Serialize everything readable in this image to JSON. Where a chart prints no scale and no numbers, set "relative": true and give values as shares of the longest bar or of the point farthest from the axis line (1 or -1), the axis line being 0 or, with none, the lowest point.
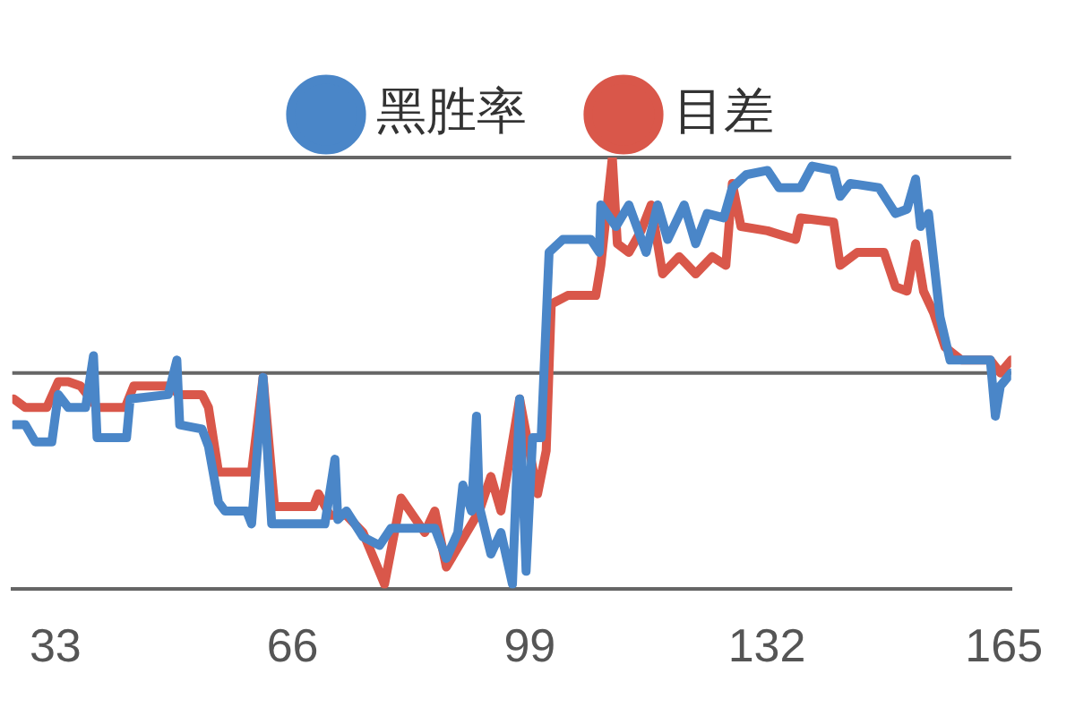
{
  "chart_data": {
    "type": "line",
    "relative": true,
    "legend": "top",
    "line_style": "solid",
    "ref_lines": [
      {
        "axis": "y",
        "value": 0.5,
        "color": "#666666"
      },
      {
        "axis": "y",
        "value": 1,
        "color": "#666666"
      }
    ],
    "xlim": [
      27,
      166
    ],
    "xticks": [
      33,
      66,
      99,
      132,
      165
    ],
    "series": [
      {
        "name": "黑胜率",
        "color": "#4a86c8",
        "x": [
          27.2,
          28.8,
          30.2,
          32.5,
          33.4,
          34.8,
          37.2,
          38.3,
          38.8,
          42.9,
          43.4,
          48.7,
          49.9,
          50.3,
          53.4,
          54.3,
          55.7,
          56.6,
          59.6,
          60.3,
          61.9,
          63.1,
          70.5,
          71.9,
          72.3,
          73.5,
          75.8,
          78.1,
          79.7,
          81.1,
          85.8,
          87.4,
          89.0,
          89.7,
          90.9,
          91.6,
          92.0,
          93.6,
          95.0,
          96.6,
          97.6,
          98.5,
          99.4,
          100.6,
          101.7,
          103.6,
          107.5,
          108.7,
          108.9,
          111.0,
          112.8,
          115.2,
          116.8,
          118.2,
          120.5,
          122.1,
          123.7,
          126.0,
          127.2,
          129.1,
          132.1,
          133.7,
          136.7,
          138.3,
          141.3,
          142.2,
          143.6,
          147.6,
          149.9,
          151.5,
          152.7,
          153.4,
          154.5,
          156.1,
          157.5,
          159.8,
          163.1,
          163.8,
          164.5,
          166.0
        ],
        "values": [
          0.38,
          0.38,
          0.34,
          0.34,
          0.45,
          0.42,
          0.42,
          0.54,
          0.35,
          0.35,
          0.44,
          0.45,
          0.53,
          0.38,
          0.37,
          0.33,
          0.2,
          0.18,
          0.18,
          0.15,
          0.49,
          0.15,
          0.15,
          0.3,
          0.16,
          0.18,
          0.12,
          0.1,
          0.14,
          0.14,
          0.14,
          0.07,
          0.13,
          0.24,
          0.18,
          0.4,
          0.19,
          0.08,
          0.13,
          0.01,
          0.44,
          0.04,
          0.35,
          0.35,
          0.78,
          0.81,
          0.81,
          0.78,
          0.89,
          0.84,
          0.89,
          0.78,
          0.89,
          0.81,
          0.89,
          0.8,
          0.87,
          0.86,
          0.93,
          0.96,
          0.97,
          0.93,
          0.93,
          0.98,
          0.97,
          0.91,
          0.94,
          0.93,
          0.87,
          0.88,
          0.95,
          0.84,
          0.87,
          0.63,
          0.53,
          0.53,
          0.53,
          0.4,
          0.47,
          0.5
        ]
      },
      {
        "name": "目差",
        "color": "#d9574a",
        "x": [
          27.2,
          28.8,
          31.8,
          33.4,
          34.8,
          36.5,
          38.8,
          42.7,
          43.9,
          48.7,
          50.3,
          53.4,
          54.3,
          55.7,
          56.6,
          60.3,
          61.9,
          63.5,
          64.2,
          68.9,
          69.6,
          71.2,
          73.5,
          75.8,
          78.8,
          81.1,
          84.4,
          85.8,
          87.4,
          92.0,
          93.6,
          95.0,
          97.6,
          100.1,
          101.3,
          102.0,
          104.3,
          108.2,
          108.9,
          110.5,
          111.2,
          112.8,
          114.5,
          115.9,
          117.5,
          119.8,
          122.1,
          124.4,
          126.3,
          127.2,
          128.4,
          132.1,
          136.0,
          136.7,
          141.3,
          142.2,
          144.6,
          148.3,
          149.9,
          151.5,
          152.7,
          153.8,
          155.2,
          156.8,
          159.1,
          163.1,
          164.5,
          166.0
        ],
        "values": [
          0.44,
          0.42,
          0.42,
          0.48,
          0.48,
          0.47,
          0.42,
          0.42,
          0.47,
          0.47,
          0.45,
          0.45,
          0.42,
          0.27,
          0.27,
          0.27,
          0.49,
          0.19,
          0.19,
          0.19,
          0.22,
          0.17,
          0.17,
          0.13,
          0.01,
          0.21,
          0.13,
          0.18,
          0.05,
          0.18,
          0.26,
          0.18,
          0.44,
          0.22,
          0.32,
          0.66,
          0.68,
          0.68,
          0.75,
          1,
          0.8,
          0.78,
          0.83,
          0.89,
          0.73,
          0.77,
          0.73,
          0.77,
          0.75,
          0.94,
          0.84,
          0.83,
          0.81,
          0.86,
          0.85,
          0.75,
          0.78,
          0.78,
          0.7,
          0.69,
          0.8,
          0.69,
          0.64,
          0.56,
          0.53,
          0.53,
          0.5,
          0.53
        ]
      }
    ]
  }
}
